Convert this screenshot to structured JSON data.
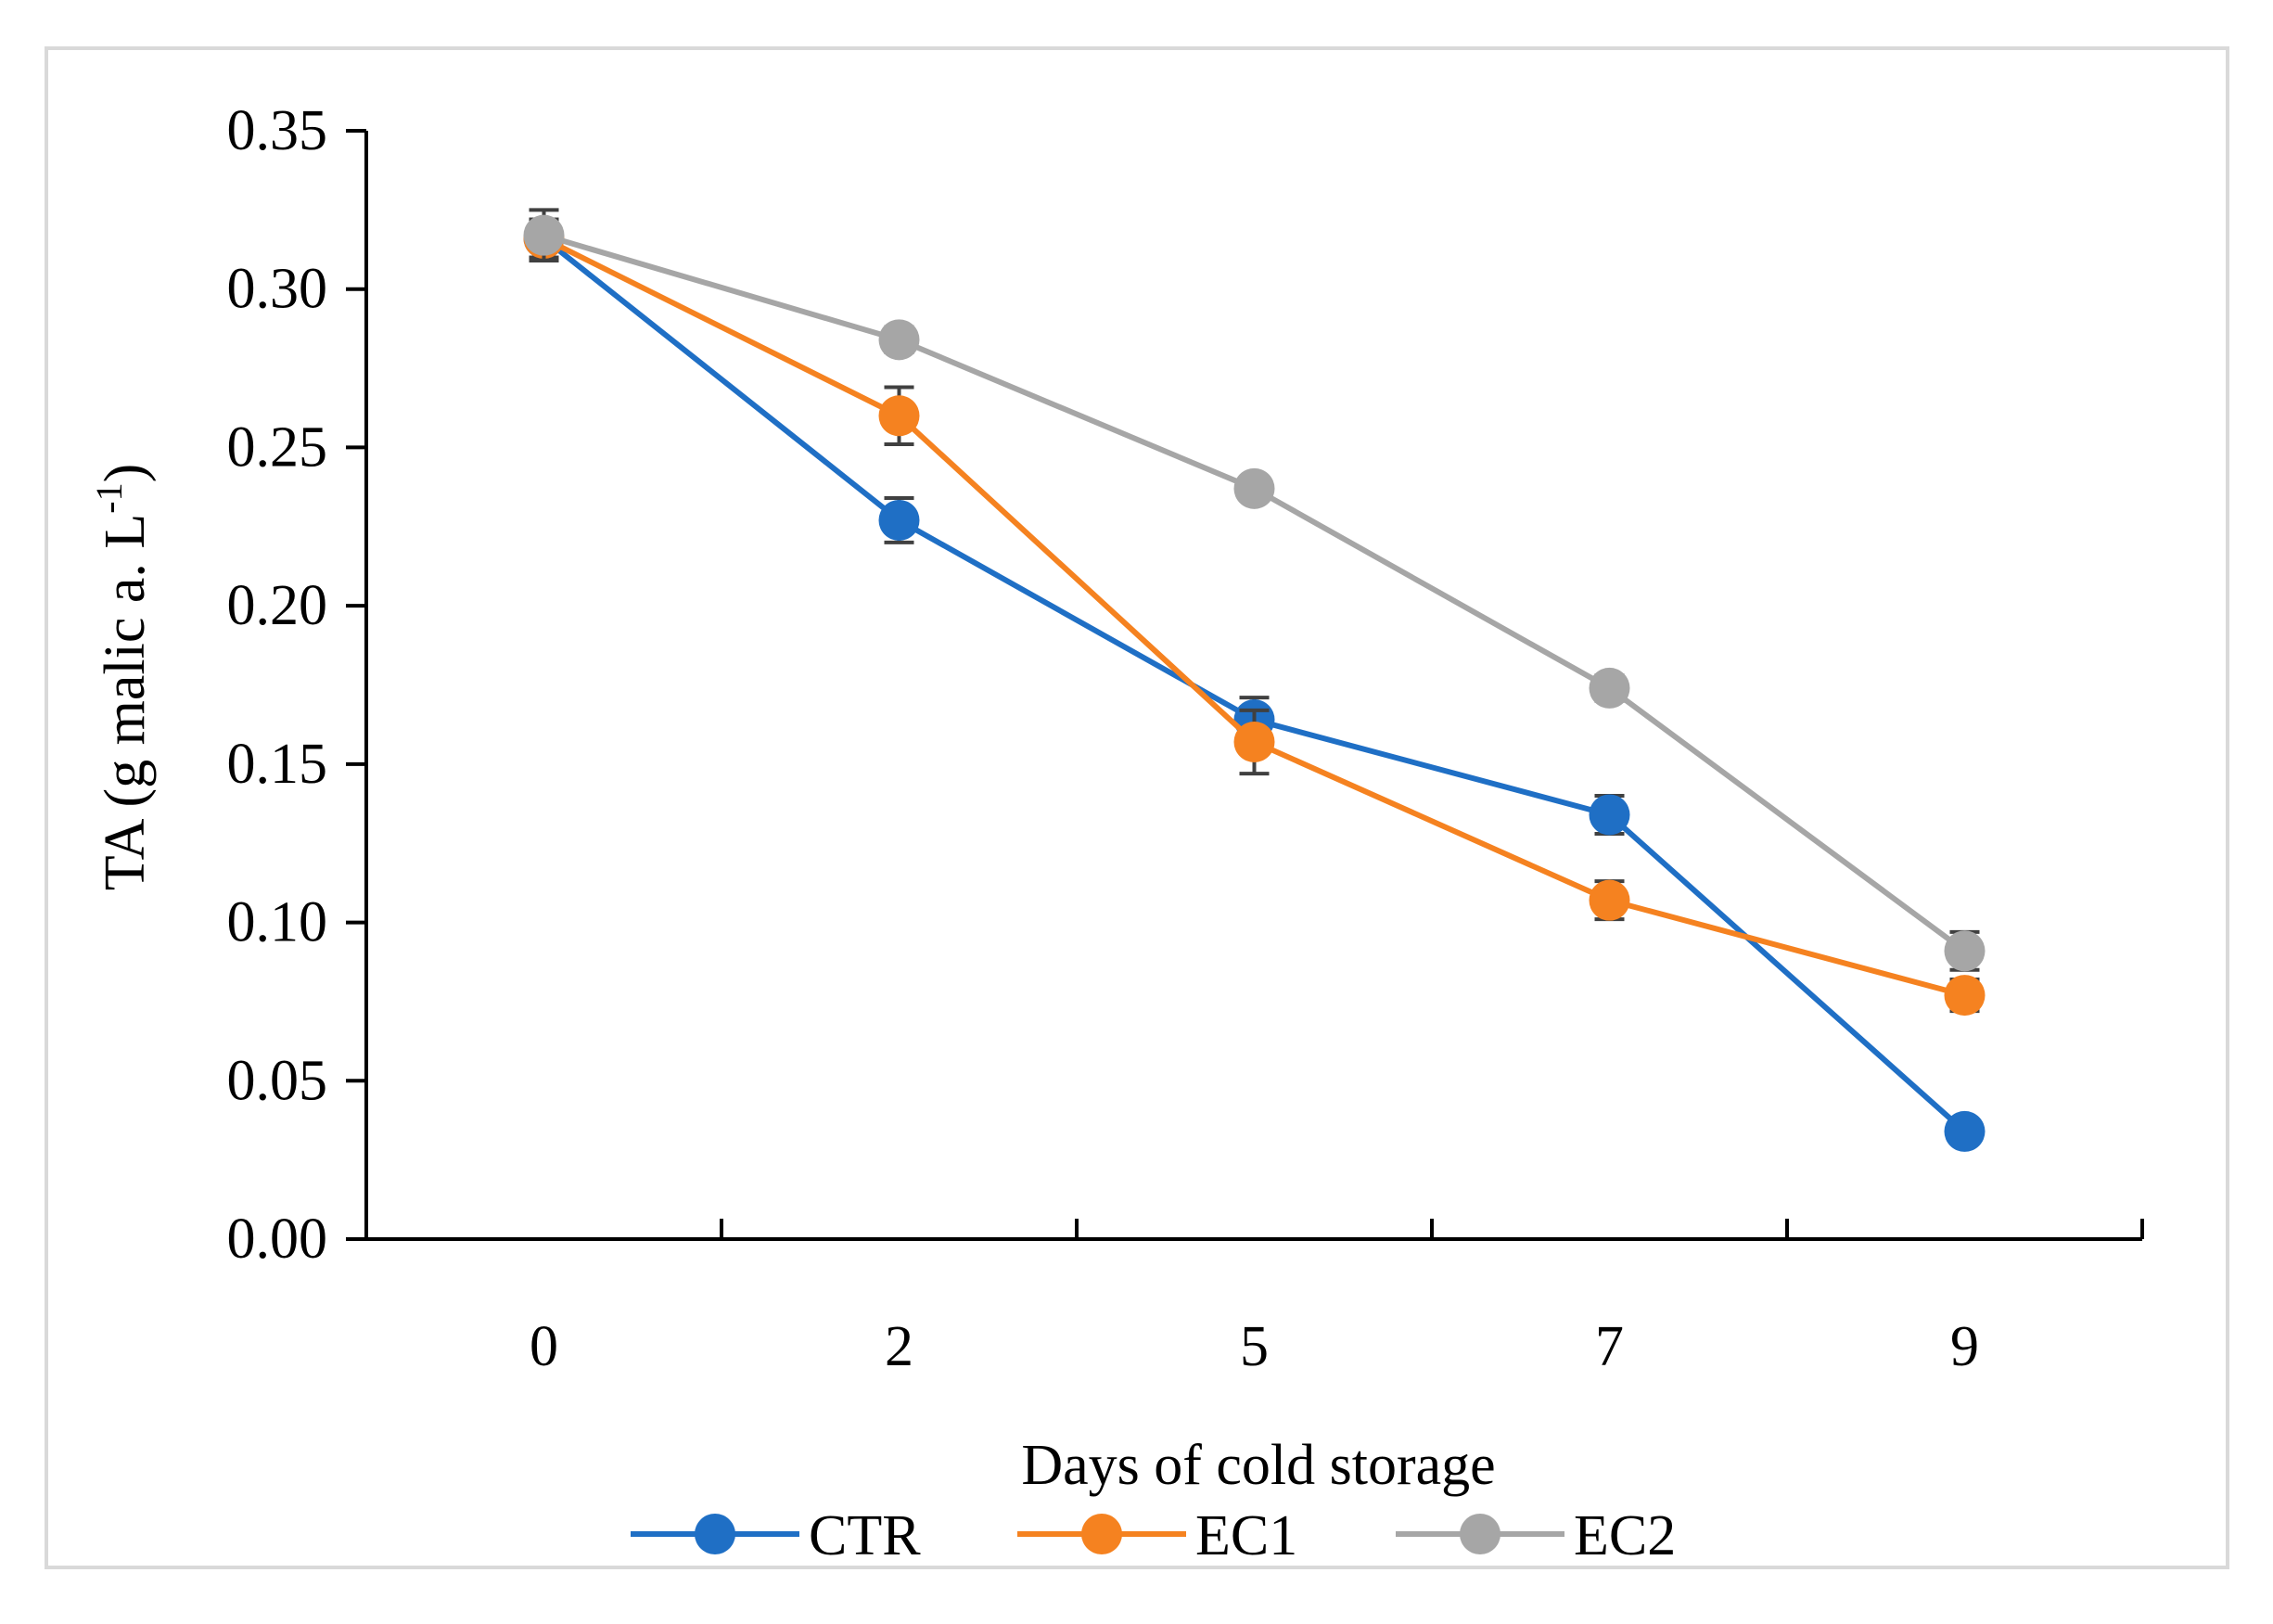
{
  "chart_data": {
    "type": "line",
    "title": "",
    "xlabel": "Days of cold storage",
    "ylabel": {
      "main": "TA (g malic a. L",
      "superscript": "-1",
      "close": ")"
    },
    "categories": [
      "0",
      "2",
      "5",
      "7",
      "9"
    ],
    "ylim": [
      0,
      0.35
    ],
    "yticks": [
      "0.00",
      "0.05",
      "0.10",
      "0.15",
      "0.20",
      "0.25",
      "0.30",
      "0.35"
    ],
    "grid": false,
    "legend_position": "bottom",
    "series": [
      {
        "name": "CTR",
        "color": "#1f6fc5",
        "values": [
          0.316,
          0.227,
          0.164,
          0.134,
          0.034
        ],
        "errors": [
          0.006,
          0.007,
          0.007,
          0.006,
          0.0
        ]
      },
      {
        "name": "EC1",
        "color": "#f58220",
        "values": [
          0.316,
          0.26,
          0.157,
          0.107,
          0.077
        ],
        "errors": [
          0.006,
          0.009,
          0.01,
          0.006,
          0.005
        ]
      },
      {
        "name": "EC2",
        "color": "#a6a6a6",
        "values": [
          0.317,
          0.284,
          0.237,
          0.174,
          0.091
        ],
        "errors": [
          0.008,
          0.004,
          0.003,
          0.004,
          0.006
        ]
      }
    ]
  }
}
